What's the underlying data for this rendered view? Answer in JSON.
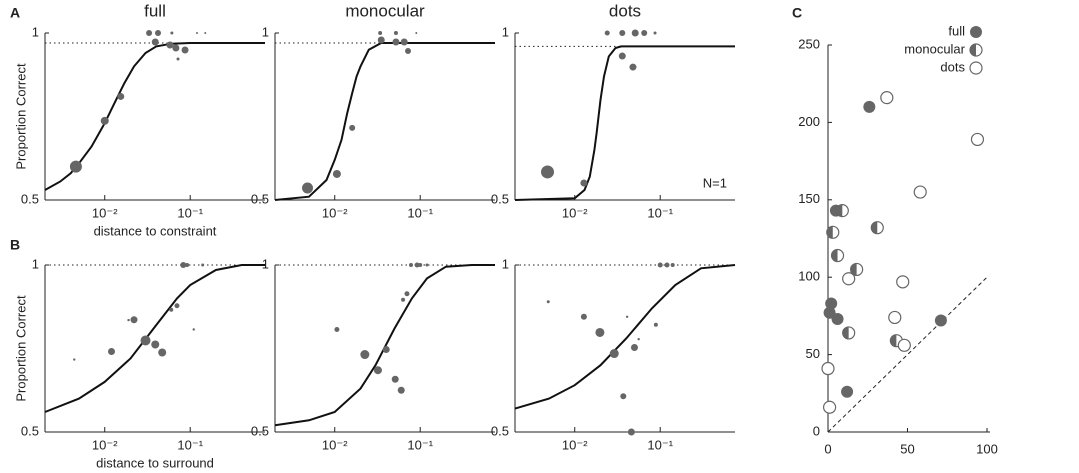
{
  "chart_data": [
    {
      "type": "scatter",
      "panel_label": "A",
      "title": "full",
      "y_label": "Proportion Correct",
      "x_label": "distance to constraint",
      "x_scale": "log",
      "xlim": [
        0.002,
        0.75
      ],
      "xticks": [
        {
          "value": 0.01,
          "label": "10⁻²"
        },
        {
          "value": 0.1,
          "label": "10⁻¹"
        }
      ],
      "ylim": [
        0.5,
        1
      ],
      "yticks": [
        0.5,
        1
      ],
      "asymptote": 0.97,
      "color": "#666666",
      "x": [
        0.0046,
        0.01,
        0.0154,
        0.033,
        0.042,
        0.061,
        0.039,
        0.058,
        0.068,
        0.087,
        0.072,
        0.12,
        0.15
      ],
      "values": [
        0.6,
        0.737,
        0.81,
        1,
        1,
        1,
        0.973,
        0.964,
        0.955,
        0.949,
        0.922,
        1,
        1
      ],
      "sizes": [
        6,
        4,
        3.5,
        3,
        3,
        1.5,
        3.5,
        3.5,
        3.5,
        3.5,
        1.5,
        1,
        1
      ],
      "fit_x": [
        0.002,
        0.003,
        0.004,
        0.005,
        0.007,
        0.01,
        0.013,
        0.017,
        0.022,
        0.03,
        0.04,
        0.06,
        0.1,
        0.75
      ],
      "fit_values": [
        0.53,
        0.555,
        0.58,
        0.61,
        0.66,
        0.73,
        0.79,
        0.85,
        0.9,
        0.94,
        0.96,
        0.968,
        0.97,
        0.97
      ]
    },
    {
      "type": "scatter",
      "title": "monocular",
      "x_scale": "log",
      "xlim": [
        0.002,
        0.75
      ],
      "xticks": [
        {
          "value": 0.01,
          "label": "10⁻²"
        },
        {
          "value": 0.1,
          "label": "10⁻¹"
        }
      ],
      "ylim": [
        0.5,
        1
      ],
      "yticks": [
        0.5,
        1
      ],
      "asymptote": 0.97,
      "color": "#666666",
      "x": [
        0.0048,
        0.0106,
        0.016,
        0.035,
        0.052,
        0.065,
        0.072,
        0.034,
        0.052,
        0.09
      ],
      "values": [
        0.536,
        0.578,
        0.716,
        0.979,
        0.973,
        0.973,
        0.946,
        1,
        1,
        1
      ],
      "sizes": [
        5.5,
        4,
        3,
        3.5,
        3.5,
        3.5,
        3,
        2,
        2,
        1
      ],
      "fit_x": [
        0.002,
        0.005,
        0.008,
        0.01,
        0.012,
        0.014,
        0.016,
        0.018,
        0.02,
        0.025,
        0.035,
        0.75
      ],
      "fit_values": [
        0.5,
        0.51,
        0.56,
        0.62,
        0.68,
        0.76,
        0.82,
        0.87,
        0.9,
        0.95,
        0.97,
        0.97
      ]
    },
    {
      "type": "scatter",
      "title": "dots",
      "annotation": "N=1",
      "x_scale": "log",
      "xlim": [
        0.002,
        0.75
      ],
      "xticks": [
        {
          "value": 0.01,
          "label": "10⁻²"
        },
        {
          "value": 0.1,
          "label": "10⁻¹"
        }
      ],
      "ylim": [
        0.5,
        1
      ],
      "yticks": [
        0.5,
        1
      ],
      "asymptote": 0.96,
      "color": "#666666",
      "x": [
        0.0048,
        0.0128,
        0.036,
        0.048,
        0.024,
        0.036,
        0.051,
        0.065,
        0.087
      ],
      "values": [
        0.584,
        0.551,
        0.931,
        0.898,
        1,
        1,
        1,
        1,
        1
      ],
      "sizes": [
        6.5,
        3.5,
        3.5,
        3.5,
        2.5,
        3,
        3.5,
        3,
        1.5
      ],
      "fit_x": [
        0.002,
        0.01,
        0.013,
        0.015,
        0.017,
        0.018,
        0.02,
        0.022,
        0.025,
        0.03,
        0.035,
        0.75
      ],
      "fit_values": [
        0.5,
        0.505,
        0.53,
        0.57,
        0.65,
        0.7,
        0.8,
        0.87,
        0.93,
        0.955,
        0.96,
        0.96
      ]
    },
    {
      "type": "scatter",
      "panel_label": "B",
      "y_label": "Proportion Correct",
      "x_label": "distance to surround",
      "x_scale": "log",
      "xlim": [
        0.002,
        0.75
      ],
      "xticks": [
        {
          "value": 0.01,
          "label": "10⁻²"
        },
        {
          "value": 0.1,
          "label": "10⁻¹"
        }
      ],
      "ylim": [
        0.5,
        1
      ],
      "yticks": [
        0.5,
        1
      ],
      "asymptote": 1,
      "color": "#666666",
      "x": [
        0.0044,
        0.012,
        0.022,
        0.019,
        0.03,
        0.039,
        0.047,
        0.06,
        0.07,
        0.11,
        0.083,
        0.092,
        0.14
      ],
      "values": [
        0.717,
        0.741,
        0.836,
        0.835,
        0.774,
        0.762,
        0.738,
        0.866,
        0.878,
        0.807,
        1,
        1,
        1
      ],
      "sizes": [
        1.2,
        3.5,
        3.5,
        1.2,
        5,
        4,
        4,
        2,
        2.5,
        1.2,
        3,
        2,
        1.5
      ],
      "fit_x": [
        0.002,
        0.005,
        0.01,
        0.02,
        0.04,
        0.07,
        0.1,
        0.2,
        0.4,
        0.75
      ],
      "fit_values": [
        0.56,
        0.6,
        0.65,
        0.72,
        0.82,
        0.9,
        0.94,
        0.985,
        1,
        1
      ]
    },
    {
      "type": "scatter",
      "x_scale": "log",
      "xlim": [
        0.002,
        0.75
      ],
      "xticks": [
        {
          "value": 0.01,
          "label": "10⁻²"
        },
        {
          "value": 0.1,
          "label": "10⁻¹"
        }
      ],
      "ylim": [
        0.5,
        1
      ],
      "yticks": [
        0.5,
        1
      ],
      "asymptote": 1,
      "color": "#666666",
      "x": [
        0.0106,
        0.0225,
        0.032,
        0.04,
        0.051,
        0.06,
        0.063,
        0.07,
        0.092,
        0.078,
        0.1,
        0.12
      ],
      "values": [
        0.807,
        0.732,
        0.685,
        0.747,
        0.658,
        0.625,
        0.896,
        0.914,
        1,
        1,
        1,
        1
      ],
      "sizes": [
        2.5,
        4.5,
        4,
        3.5,
        3.5,
        3.5,
        2,
        2.5,
        2.5,
        2,
        2,
        1.5
      ],
      "fit_x": [
        0.002,
        0.005,
        0.01,
        0.02,
        0.03,
        0.05,
        0.08,
        0.12,
        0.2,
        0.4,
        0.75
      ],
      "fit_values": [
        0.52,
        0.535,
        0.56,
        0.63,
        0.7,
        0.81,
        0.9,
        0.96,
        0.995,
        1,
        1
      ]
    },
    {
      "type": "scatter",
      "x_scale": "log",
      "xlim": [
        0.002,
        0.75
      ],
      "xticks": [
        {
          "value": 0.01,
          "label": "10⁻²"
        },
        {
          "value": 0.1,
          "label": "10⁻¹"
        }
      ],
      "ylim": [
        0.5,
        1
      ],
      "yticks": [
        0.5,
        1
      ],
      "asymptote": 1,
      "color": "#666666",
      "x": [
        0.0049,
        0.0128,
        0.0197,
        0.029,
        0.041,
        0.05,
        0.089,
        0.037,
        0.046,
        0.056,
        0.1,
        0.12,
        0.14
      ],
      "values": [
        0.89,
        0.845,
        0.798,
        0.735,
        0.845,
        0.753,
        0.821,
        0.607,
        0.5,
        0.778,
        1,
        1,
        1
      ],
      "sizes": [
        1.5,
        3,
        4.5,
        4.5,
        1.2,
        3.5,
        2,
        3,
        3.5,
        1.2,
        2.5,
        2.5,
        2
      ],
      "fit_x": [
        0.002,
        0.005,
        0.01,
        0.02,
        0.04,
        0.08,
        0.15,
        0.3,
        0.75
      ],
      "fit_values": [
        0.57,
        0.6,
        0.64,
        0.7,
        0.78,
        0.87,
        0.94,
        0.99,
        1
      ]
    },
    {
      "type": "scatter",
      "panel_label": "C",
      "legend": "upper right",
      "identity_line": true,
      "xlim": [
        0,
        100
      ],
      "xticks": [
        0,
        50,
        100
      ],
      "ylim": [
        0,
        250
      ],
      "yticks": [
        0,
        50,
        100,
        150,
        200,
        250
      ],
      "series": [
        {
          "name": "full",
          "color": "#666666",
          "marker": "filled",
          "x": [
            5,
            2,
            1,
            6,
            12,
            26,
            71
          ],
          "values": [
            143,
            83,
            77,
            73,
            26,
            210,
            72
          ]
        },
        {
          "name": "monocular",
          "color": "#666666",
          "marker": "half",
          "x": [
            9,
            3,
            6,
            18,
            13,
            31,
            43
          ],
          "values": [
            143,
            129,
            114,
            105,
            64,
            132,
            59
          ]
        },
        {
          "name": "dots",
          "color": "#666666",
          "marker": "open",
          "x": [
            37,
            94,
            58,
            47,
            13,
            42,
            48,
            0,
            1
          ],
          "values": [
            216,
            189,
            155,
            97,
            99,
            74,
            56,
            41,
            16
          ]
        }
      ]
    }
  ]
}
